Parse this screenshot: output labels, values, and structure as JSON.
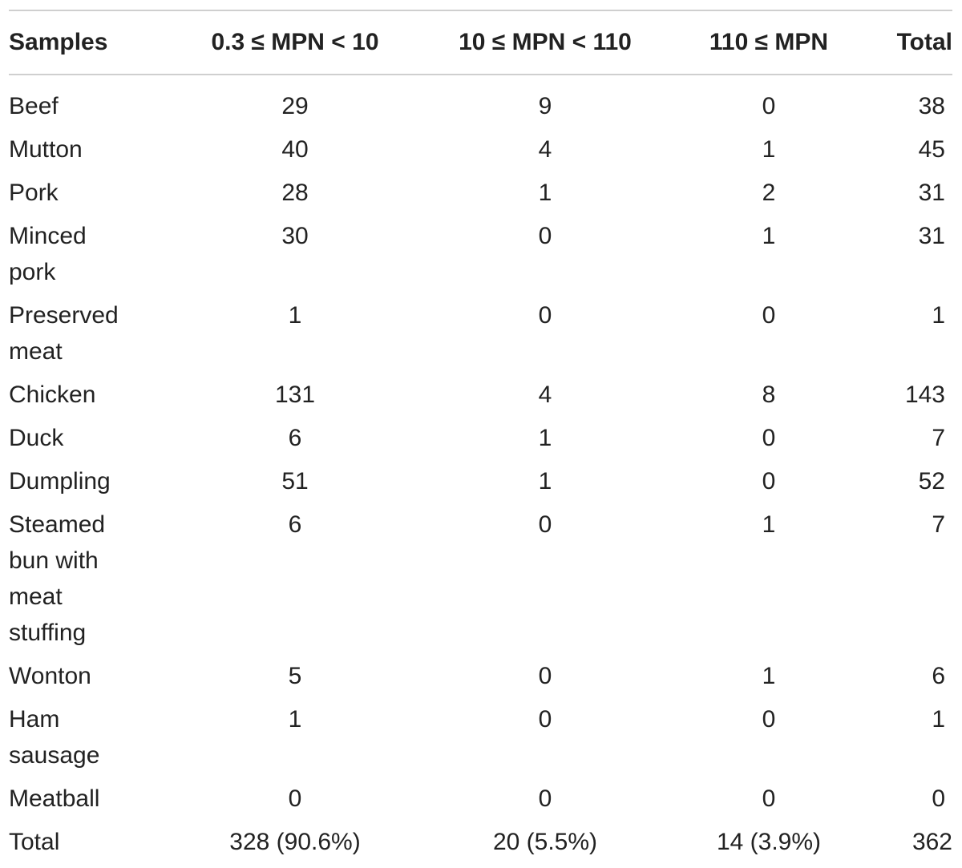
{
  "table": {
    "headers": [
      "Samples",
      "0.3 ≤ MPN < 10",
      "10 ≤ MPN < 110",
      "110 ≤ MPN",
      "Total"
    ],
    "rows": [
      {
        "name_lines": [
          "Beef"
        ],
        "c1": "29",
        "c2": "9",
        "c3": "0",
        "total": "38"
      },
      {
        "name_lines": [
          "Mutton"
        ],
        "c1": "40",
        "c2": "4",
        "c3": "1",
        "total": "45"
      },
      {
        "name_lines": [
          "Pork"
        ],
        "c1": "28",
        "c2": "1",
        "c3": "2",
        "total": "31"
      },
      {
        "name_lines": [
          "Minced",
          "pork"
        ],
        "c1": "30",
        "c2": "0",
        "c3": "1",
        "total": "31"
      },
      {
        "name_lines": [
          "Preserved",
          "meat"
        ],
        "c1": "1",
        "c2": "0",
        "c3": "0",
        "total": "1"
      },
      {
        "name_lines": [
          "Chicken"
        ],
        "c1": "131",
        "c2": "4",
        "c3": "8",
        "total": "143"
      },
      {
        "name_lines": [
          "Duck"
        ],
        "c1": "6",
        "c2": "1",
        "c3": "0",
        "total": "7"
      },
      {
        "name_lines": [
          "Dumpling"
        ],
        "c1": "51",
        "c2": "1",
        "c3": "0",
        "total": "52"
      },
      {
        "name_lines": [
          "Steamed",
          "bun with",
          "meat",
          "stuffing"
        ],
        "c1": "6",
        "c2": "0",
        "c3": "1",
        "total": "7"
      },
      {
        "name_lines": [
          "Wonton"
        ],
        "c1": "5",
        "c2": "0",
        "c3": "1",
        "total": "6"
      },
      {
        "name_lines": [
          "Ham",
          "sausage"
        ],
        "c1": "1",
        "c2": "0",
        "c3": "0",
        "total": "1"
      },
      {
        "name_lines": [
          "Meatball"
        ],
        "c1": "0",
        "c2": "0",
        "c3": "0",
        "total": "0"
      }
    ],
    "total_row": {
      "name": "Total",
      "c1": "328 (90.6%)",
      "c2": "20 (5.5%)",
      "c3": "14 (3.9%)",
      "total": "362"
    }
  }
}
